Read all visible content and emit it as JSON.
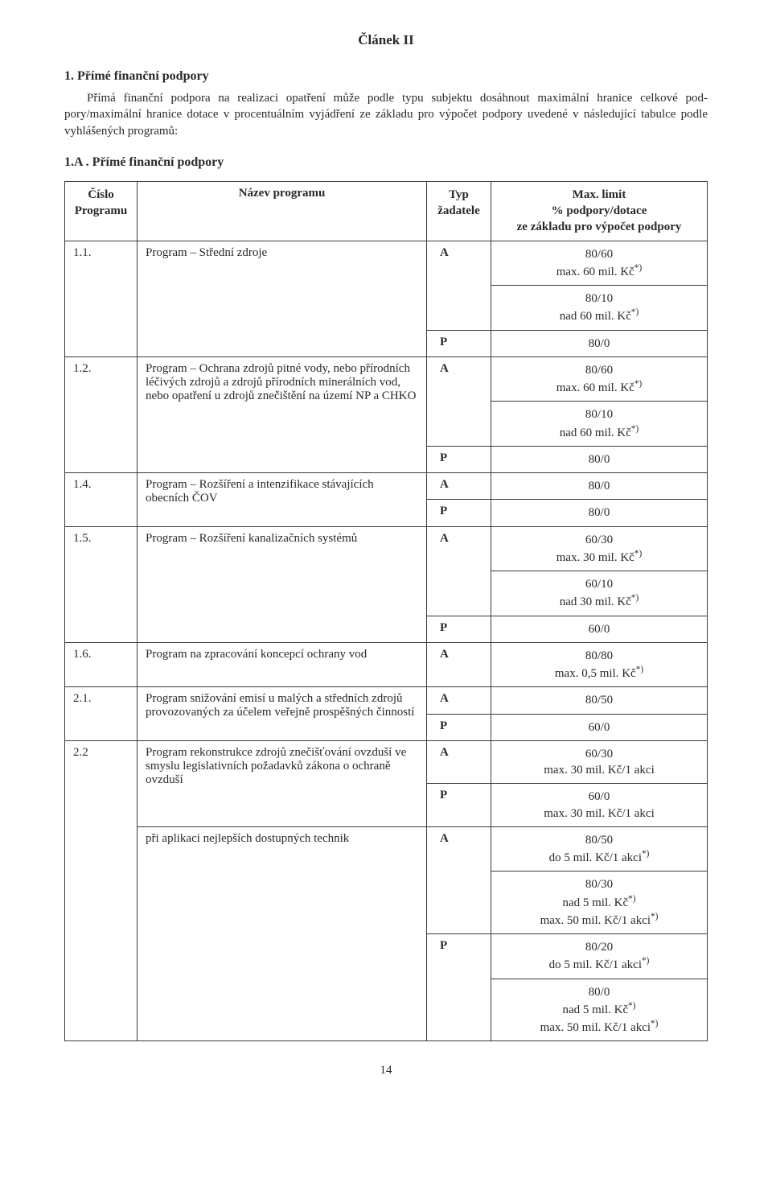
{
  "article_heading": "Článek II",
  "section1_title": "1. Přímé finanční podpory",
  "intro_paragraph": "Přímá finanční podpora na realizaci opatření může podle typu subjektu dosáhnout maximální hranice celkové pod­pory/maximální hranice dotace v procentuálním vyjádření ze základu pro výpočet podpory uvedené v následující tabulce podle vyhlášených programů:",
  "subsection_title": "1.A . Přímé finanční podpory",
  "table": {
    "columns": {
      "num": "Číslo\nProgramu",
      "name": "Název programu",
      "typ": "Typ\nžadatele",
      "limit": "Max. limit\n% podpory/dotace\nze základu pro výpočet podpory"
    },
    "header_style": {
      "font_weight": "bold",
      "text_align": "center"
    },
    "border_color": "#3a3a3a",
    "rows": [
      {
        "num": "1.1.",
        "name": "Program – Střední zdroje",
        "cells": [
          {
            "typ": "A",
            "limit": "80/60\nmax. 60 mil. Kč*)",
            "merge_with_next": true
          },
          {
            "typ": "",
            "limit": "80/10\nnad 60 mil. Kč*)"
          },
          {
            "typ": "P",
            "limit": "80/0"
          }
        ]
      },
      {
        "num": "1.2.",
        "name": "Program – Ochrana zdrojů pitné vody, nebo přírodních léčivých zdrojů a zdrojů přírodních minerál­ních vod, nebo opatření u zdrojů znečištění na území NP a CHKO",
        "cells": [
          {
            "typ": "A",
            "limit": "80/60\nmax. 60 mil. Kč*)",
            "merge_with_next": true
          },
          {
            "typ": "",
            "limit": "80/10\nnad 60 mil. Kč*)"
          },
          {
            "typ": "P",
            "limit": "80/0"
          }
        ]
      },
      {
        "num": "1.4.",
        "name": "Program – Rozšíření a intenzifikace stávajících obecních ČOV",
        "cells": [
          {
            "typ": "A",
            "limit": "80/0"
          },
          {
            "typ": "P",
            "limit": "80/0"
          }
        ]
      },
      {
        "num": "1.5.",
        "name": "Program – Rozšíření kanalizačních systémů",
        "cells": [
          {
            "typ": "A",
            "limit": "60/30\nmax. 30 mil. Kč*)",
            "merge_with_next": true
          },
          {
            "typ": "",
            "limit": "60/10\nnad 30 mil. Kč*)"
          },
          {
            "typ": "P",
            "limit": "60/0"
          }
        ]
      },
      {
        "num": "1.6.",
        "name": "Program na zpracování koncepcí ochrany vod",
        "cells": [
          {
            "typ": "A",
            "limit": "80/80\nmax. 0,5 mil. Kč*)"
          }
        ]
      },
      {
        "num": "2.1.",
        "name": "Program snižování emisí u malých a středních zdrojů provozovaných za účelem veřejně prospěšných činností",
        "cells": [
          {
            "typ": "A",
            "limit": "80/50"
          },
          {
            "typ": "P",
            "limit": "60/0"
          }
        ]
      },
      {
        "num": "2.2",
        "name": "Program rekonstrukce zdrojů znečišťování ovzduší ve smyslu legislativních požadavků zákona o ochraně ovzduší",
        "name2": "při aplikaci nejlepších dostupných technik",
        "cells": [
          {
            "typ": "A",
            "limit": "60/30\nmax. 30 mil. Kč/1 akci"
          },
          {
            "typ": "P",
            "limit": "60/0\nmax. 30 mil. Kč/1 akci"
          },
          {
            "typ": "A",
            "limit": "80/50\ndo 5 mil. Kč/1 akci*)",
            "name_override": "name2",
            "merge_with_next": true
          },
          {
            "typ": "",
            "limit": "80/30\nnad 5 mil. Kč*)\nmax. 50 mil. Kč/1 akci*)"
          },
          {
            "typ": "P",
            "limit": "80/20\ndo 5 mil. Kč/1 akci*)",
            "merge_with_next": true
          },
          {
            "typ": "",
            "limit": "80/0\nnad 5 mil. Kč*)\nmax. 50 mil. Kč/1 akci*)"
          }
        ]
      }
    ]
  },
  "page_number": "14"
}
